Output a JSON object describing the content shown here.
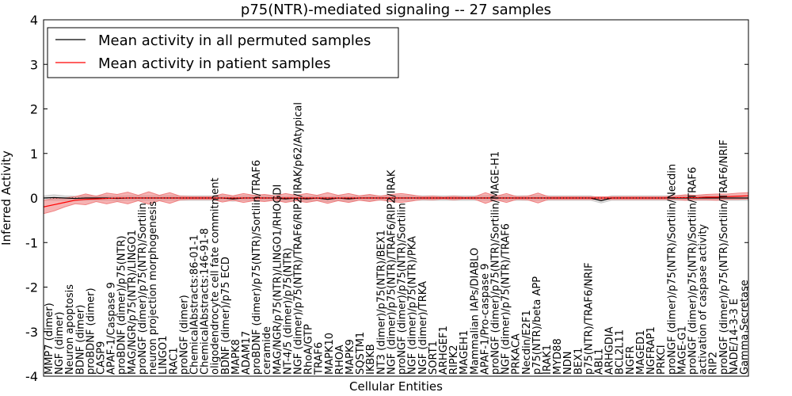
{
  "chart_data": {
    "type": "line",
    "title": "p75(NTR)-mediated signaling -- 27 samples",
    "xlabel": "Cellular Entities",
    "ylabel": "Inferred Activity",
    "ylim": [
      -4,
      4
    ],
    "yticks": [
      "-4",
      "-3",
      "-2",
      "-1",
      "0",
      "1",
      "2",
      "3",
      "4"
    ],
    "legend_position": "top-left",
    "colors": {
      "patient": "#ff0000",
      "permuted": "#000000",
      "patient_band": "#f08080",
      "permuted_band": "#c8c8c8"
    },
    "categories": [
      "MMP7 (dimer)",
      "NGF (dimer)",
      "Neuron apoptosis",
      "BDNF (dimer)",
      "proBDNF (dimer)",
      "CASP9",
      "APAF-1/Caspase 9",
      "proBDNF (dimer)/p75(NTR)",
      "MAG/NGR/p75(NTR)/LINGO1",
      "proNGF (dimer)/p75(NTR)/Sortilin",
      "neuron projection morphogenesis",
      "LINGO1",
      "RAC1",
      "proNGF (dimer)",
      "ChemicalAbstracts:86-01-1",
      "ChemicalAbstracts:146-91-8",
      "oligodendrocyte cell fate commitment",
      "BDNF (dimer)/p75 ECD",
      "MAPK8",
      "ADAM17",
      "proBDNF (dimer)/p75(NTR)/Sortilin/TRAF6",
      "ceramide",
      "MAG/NGR/p75(NTR)/LINGO1/RHOGDI",
      "NT-4/5 (dimer)/p75(NTR)",
      "NGF (dimer)/p75(NTR)/TRAF6/RIP2/IRAK/p62/Atypical",
      "RhoA/GTP",
      "TRAF6",
      "MAPK10",
      "RHOA",
      "MAPK9",
      "SQSTM1",
      "IKBKB",
      "NT3 (dimer)/p75(NTR)/BEX1",
      "NGF (dimer)/p75(NTR)/TRAF6/RIP2/IRAK",
      "proNGF (dimer)/p75(NTR)/Sortilin",
      "NGF (dimer)/p75(NTR)/PKA",
      "NGF (dimer)/TRKA",
      "SORT1",
      "ARHGEF1",
      "RIPK2",
      "MAGEH1",
      "Mammalian IAPs/DIABLO",
      "APAF-1/Pro-caspase 9",
      "proNGF (dimer)/p75(NTR)/Sortilin/MAGE-H1",
      "NGF (dimer)/p75(NTR)/TRAF6",
      "PRKACA",
      "Necdin/E2F1",
      "p75(NTR)/beta APP",
      "IRAK1",
      "MYD88",
      "NDN",
      "BEX1",
      "p75(NTR)/TRAF6/NRIF",
      "ABL1",
      "ARHGDIA",
      "BCL2L11",
      "NGFR",
      "MAGED1",
      "NGFRAP1",
      "PRKCI",
      "proNGF (dimer)/p75(NTR)/Sortilin/Necdin",
      "MAGE-G1",
      "proNGF (dimer)/p75(NTR)/Sortilin/TRAF6",
      "activation of caspase activity",
      "RIP2",
      "proNGF (dimer)/p75(NTR)/Sortilin/TRAF6/NRIF",
      "NADE/14-3-3 E",
      "Gamma Secretase"
    ],
    "series": [
      {
        "name": "Mean activity in all permuted samples",
        "values": [
          0,
          0.01,
          0,
          -0.01,
          0,
          0,
          0,
          -0.01,
          0,
          0,
          0,
          0,
          0,
          0,
          0,
          0,
          0,
          0,
          -0.02,
          0,
          0,
          0,
          0,
          -0.02,
          0,
          -0.02,
          0,
          -0.03,
          0,
          -0.02,
          0,
          0,
          0,
          0,
          0,
          0,
          0,
          0,
          0,
          0,
          0,
          0,
          0,
          0,
          0,
          0,
          0,
          0,
          0,
          0,
          0,
          0,
          0,
          -0.06,
          0,
          0,
          0,
          0,
          0,
          0,
          0,
          0,
          0,
          0,
          0,
          0,
          0,
          0
        ],
        "std": [
          0.05,
          0.06,
          0.05,
          0.05,
          0.05,
          0.05,
          0.05,
          0.05,
          0.05,
          0.05,
          0.05,
          0.05,
          0.05,
          0.05,
          0.05,
          0.05,
          0.05,
          0.05,
          0.05,
          0.05,
          0.05,
          0.05,
          0.05,
          0.05,
          0.05,
          0.05,
          0.05,
          0.05,
          0.05,
          0.05,
          0.05,
          0.05,
          0.05,
          0.05,
          0.05,
          0.05,
          0.05,
          0.05,
          0.05,
          0.05,
          0.05,
          0.05,
          0.05,
          0.05,
          0.05,
          0.05,
          0.05,
          0.05,
          0.05,
          0.05,
          0.05,
          0.05,
          0.05,
          0.05,
          0.05,
          0.05,
          0.05,
          0.05,
          0.05,
          0.05,
          0.05,
          0.05,
          0.05,
          0.05,
          0.05,
          0.05,
          0.05,
          0.05
        ]
      },
      {
        "name": "Mean activity in patient samples",
        "values": [
          -0.2,
          -0.15,
          -0.1,
          -0.05,
          -0.03,
          -0.02,
          -0.01,
          0,
          0,
          0,
          0,
          0,
          0,
          0,
          0,
          0,
          0,
          0,
          0,
          0,
          0,
          0,
          0,
          0,
          0,
          0,
          0,
          0,
          0,
          0,
          0,
          0,
          0,
          0,
          0,
          0,
          0,
          0,
          0,
          0,
          0,
          0,
          0,
          0,
          0,
          0,
          0,
          0,
          0,
          0,
          0,
          0,
          0,
          0,
          0,
          0,
          0,
          0,
          0,
          0,
          0.01,
          0.01,
          0.01,
          0.02,
          0.02,
          0.03,
          0.04,
          0.05
        ],
        "std": [
          0.15,
          0.14,
          0.1,
          0.08,
          0.12,
          0.06,
          0.12,
          0.08,
          0.13,
          0.06,
          0.14,
          0.06,
          0.12,
          0.04,
          0.03,
          0.03,
          0.03,
          0.09,
          0.05,
          0.1,
          0.06,
          0.08,
          0.05,
          0.1,
          0.06,
          0.1,
          0.06,
          0.12,
          0.06,
          0.1,
          0.05,
          0.08,
          0.04,
          0.08,
          0.1,
          0.07,
          0.03,
          0.04,
          0.02,
          0.04,
          0.02,
          0.03,
          0.12,
          0.04,
          0.1,
          0.03,
          0.04,
          0.11,
          0.03,
          0.03,
          0.03,
          0.03,
          0.03,
          0.03,
          0.03,
          0.03,
          0.03,
          0.03,
          0.03,
          0.03,
          0.04,
          0.06,
          0.05,
          0.06,
          0.07,
          0.06,
          0.07,
          0.07
        ]
      }
    ]
  }
}
